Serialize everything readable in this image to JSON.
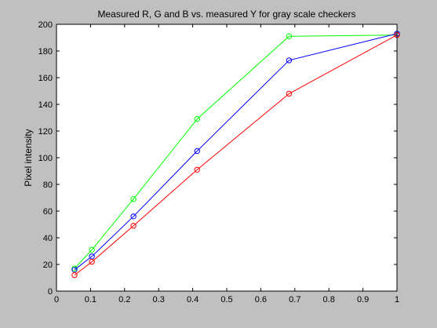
{
  "chart_data": {
    "type": "line",
    "title": "Measured R, G and B vs. measured Y for gray scale checkers",
    "xlabel": "",
    "ylabel": "Pixel intensity",
    "xlim": [
      0,
      1
    ],
    "ylim": [
      0,
      200
    ],
    "xticks": [
      "0",
      "0.1",
      "0.2",
      "0.3",
      "0.4",
      "0.5",
      "0.6",
      "0.7",
      "0.8",
      "0.9",
      "1"
    ],
    "yticks": [
      "0",
      "20",
      "40",
      "60",
      "80",
      "100",
      "120",
      "140",
      "160",
      "180",
      "200"
    ],
    "grid": false,
    "marker": "circle",
    "x": [
      0.053,
      0.104,
      0.226,
      0.413,
      0.683,
      1.0
    ],
    "series": [
      {
        "color": "#00ff00",
        "values": [
          17,
          31,
          69,
          129,
          191,
          192
        ]
      },
      {
        "color": "#0000ff",
        "values": [
          16,
          26,
          56,
          105,
          173,
          193
        ]
      },
      {
        "color": "#ff0000",
        "values": [
          12,
          22,
          49,
          91,
          148,
          192
        ]
      }
    ],
    "colors": {
      "figure_background": "#c0c0c0",
      "axes_background": "#ffffff",
      "axes_color": "#000000"
    }
  }
}
